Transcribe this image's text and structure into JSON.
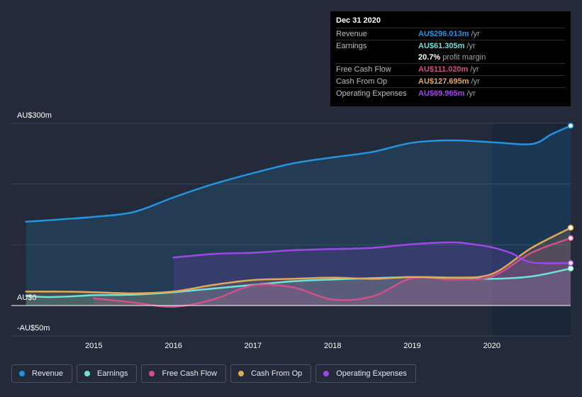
{
  "chart_data": {
    "type": "area",
    "x_ticks": [
      "2015",
      "2016",
      "2017",
      "2018",
      "2019",
      "2020"
    ],
    "y_ticks": [
      "AU$300m",
      "AU$0",
      "-AU$50m"
    ],
    "ylim": [
      -50,
      300
    ],
    "xlim": [
      2014.15,
      2020.99
    ],
    "forecast_start": 2020.0,
    "series": [
      {
        "name": "Revenue",
        "color": "#2394df",
        "x": [
          2014.15,
          2014.6,
          2015.0,
          2015.5,
          2016.0,
          2016.5,
          2017.0,
          2017.5,
          2018.0,
          2018.5,
          2019.0,
          2019.5,
          2020.0,
          2020.5,
          2020.75,
          2020.99
        ],
        "values": [
          138,
          142,
          146,
          154,
          178,
          200,
          218,
          234,
          244,
          253,
          268,
          272,
          269,
          266,
          282,
          296
        ]
      },
      {
        "name": "Earnings",
        "color": "#6fe3d4",
        "x": [
          2014.15,
          2014.4,
          2014.7,
          2015.0,
          2015.5,
          2016.0,
          2016.5,
          2017.0,
          2017.5,
          2018.0,
          2018.5,
          2019.0,
          2019.5,
          2020.0,
          2020.5,
          2020.99
        ],
        "values": [
          16,
          14,
          15,
          17,
          18,
          22,
          28,
          34,
          40,
          43,
          45,
          47,
          46,
          44,
          48,
          61
        ]
      },
      {
        "name": "Free Cash Flow",
        "color": "#d34f8a",
        "x": [
          2015.0,
          2015.5,
          2016.0,
          2016.5,
          2017.0,
          2017.5,
          2018.0,
          2018.5,
          2019.0,
          2019.5,
          2020.0,
          2020.5,
          2020.99
        ],
        "values": [
          12,
          5,
          -2,
          10,
          33,
          30,
          10,
          15,
          45,
          43,
          48,
          87,
          111
        ]
      },
      {
        "name": "Cash From Op",
        "color": "#e1a95b",
        "x": [
          2014.15,
          2014.5,
          2015.0,
          2015.5,
          2016.0,
          2016.5,
          2017.0,
          2017.5,
          2018.0,
          2018.5,
          2019.0,
          2019.5,
          2020.0,
          2020.5,
          2020.99
        ],
        "values": [
          23,
          23,
          22,
          20,
          23,
          34,
          42,
          44,
          46,
          44,
          47,
          46,
          52,
          95,
          128
        ]
      },
      {
        "name": "Operating Expenses",
        "color": "#a046e8",
        "x": [
          2016.0,
          2016.5,
          2017.0,
          2017.5,
          2018.0,
          2018.5,
          2019.0,
          2019.5,
          2019.7,
          2020.0,
          2020.25,
          2020.5,
          2020.99
        ],
        "values": [
          79,
          85,
          87,
          91,
          93,
          95,
          101,
          104,
          102,
          96,
          86,
          71,
          70
        ]
      }
    ]
  },
  "tooltip": {
    "date": "Dec 31 2020",
    "rows": [
      {
        "label": "Revenue",
        "value": "AU$296.013m",
        "unit": "/yr",
        "color": "#2394df"
      },
      {
        "label": "Earnings",
        "value": "AU$61.305m",
        "unit": "/yr",
        "color": "#6fe3d4"
      },
      {
        "label": "",
        "value": "20.7%",
        "unit": "profit margin",
        "color": "#ffffff"
      },
      {
        "label": "Free Cash Flow",
        "value": "AU$111.020m",
        "unit": "/yr",
        "color": "#d34f8a"
      },
      {
        "label": "Cash From Op",
        "value": "AU$127.695m",
        "unit": "/yr",
        "color": "#e1a95b"
      },
      {
        "label": "Operating Expenses",
        "value": "AU$69.965m",
        "unit": "/yr",
        "color": "#a046e8"
      }
    ]
  },
  "legend": [
    {
      "label": "Revenue",
      "color": "#2394df"
    },
    {
      "label": "Earnings",
      "color": "#6fe3d4"
    },
    {
      "label": "Free Cash Flow",
      "color": "#d34f8a"
    },
    {
      "label": "Cash From Op",
      "color": "#e1a95b"
    },
    {
      "label": "Operating Expenses",
      "color": "#a046e8"
    }
  ]
}
